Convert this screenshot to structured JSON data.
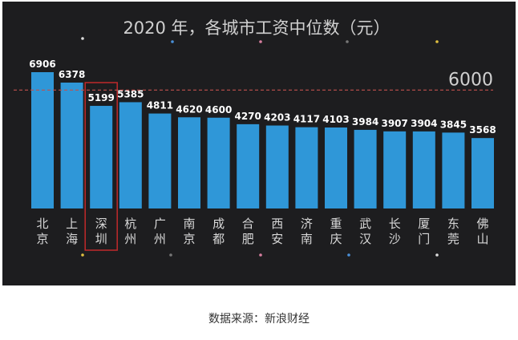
{
  "chart_data": {
    "type": "bar",
    "title": "2020 年，各城市工资中位数（元）",
    "categories": [
      "北京",
      "上海",
      "深圳",
      "杭州",
      "广州",
      "南京",
      "成都",
      "合肥",
      "西安",
      "济南",
      "重庆",
      "武汉",
      "长沙",
      "厦门",
      "东莞",
      "佛山"
    ],
    "values": [
      6906,
      6378,
      5199,
      5385,
      4811,
      4620,
      4600,
      4270,
      4203,
      4117,
      4103,
      3984,
      3907,
      3904,
      3845,
      3568
    ],
    "reference_line": {
      "value": 6000,
      "label": "6000",
      "style": "dashed",
      "color": "#c0504d"
    },
    "highlighted_category": "深圳",
    "ylim": [
      0,
      6906
    ],
    "grid": false,
    "legend": "none",
    "xlabel": "",
    "ylabel": ""
  },
  "colors": {
    "background": "#1d1d1f",
    "bar": "#2f97d8",
    "text": "#ffffff",
    "axis_text": "#d8d8d8",
    "highlight": "#c0292b",
    "reference": "#c0504d"
  },
  "source_note": "数据来源：新浪财经"
}
